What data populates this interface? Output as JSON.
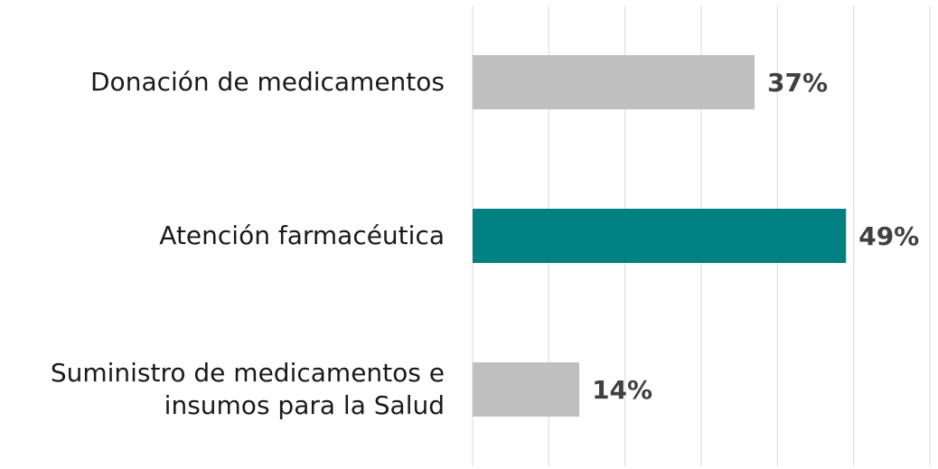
{
  "chart_data": {
    "type": "barh",
    "categories": [
      "Donación de medicamentos",
      "Atención farmacéutica",
      "Suministro de medicamentos e insumos para la Salud"
    ],
    "values": [
      37,
      49,
      14
    ],
    "value_labels": [
      "37%",
      "49%",
      "14%"
    ],
    "colors": [
      "#bfbfbf",
      "#008080",
      "#bfbfbf"
    ],
    "xlim": [
      0,
      60
    ],
    "xticks": [
      0,
      10,
      20,
      30,
      40,
      50,
      60
    ],
    "grid": true
  }
}
